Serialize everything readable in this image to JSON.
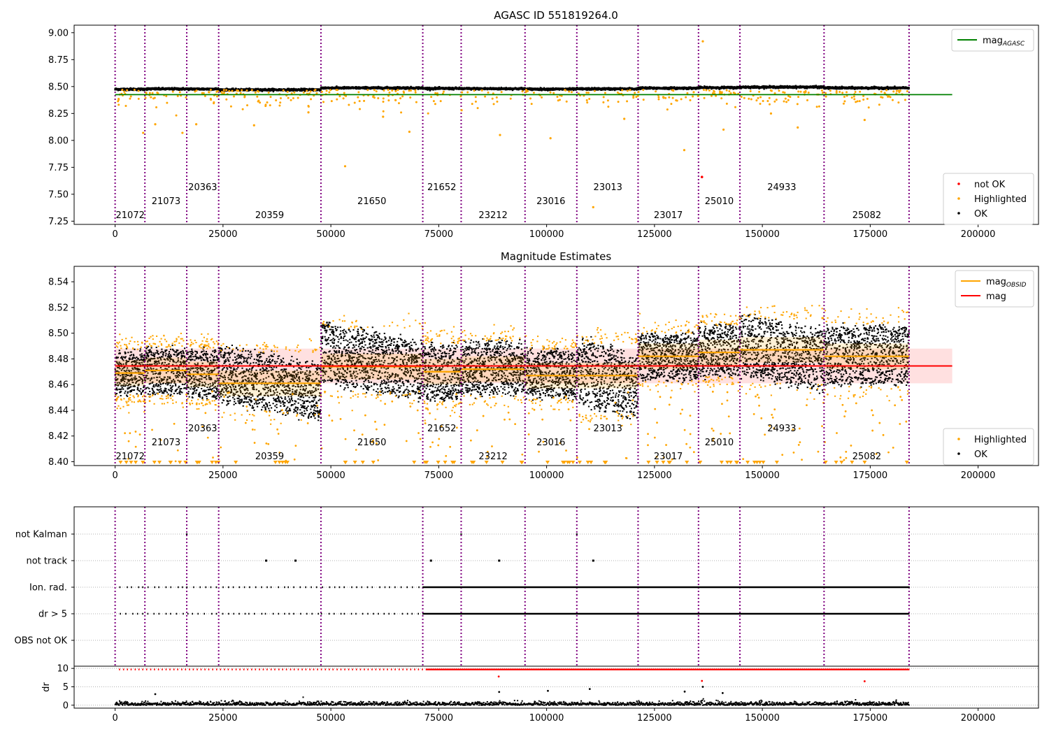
{
  "figure": {
    "obsid_boundaries": [
      0,
      6900,
      16600,
      24000,
      47700,
      71300,
      80200,
      95000,
      107000,
      121200,
      135200,
      144800,
      164300,
      184000
    ],
    "obsids": [
      {
        "label": "21072",
        "x": 3500,
        "level": 0
      },
      {
        "label": "21073",
        "x": 11800,
        "level": 1
      },
      {
        "label": "20363",
        "x": 20300,
        "level": 2
      },
      {
        "label": "20359",
        "x": 35800,
        "level": 0
      },
      {
        "label": "21650",
        "x": 59500,
        "level": 1
      },
      {
        "label": "21652",
        "x": 75700,
        "level": 2
      },
      {
        "label": "23212",
        "x": 87600,
        "level": 0
      },
      {
        "label": "23016",
        "x": 101000,
        "level": 1
      },
      {
        "label": "23013",
        "x": 114200,
        "level": 2
      },
      {
        "label": "23017",
        "x": 128200,
        "level": 0
      },
      {
        "label": "25010",
        "x": 140000,
        "level": 1
      },
      {
        "label": "24933",
        "x": 154500,
        "level": 2
      },
      {
        "label": "25082",
        "x": 174200,
        "level": 0
      }
    ]
  },
  "chart_data": [
    {
      "type": "scatter",
      "title": "AGASC ID 551819264.0",
      "xlim": [
        -9500,
        214000
      ],
      "ylim": [
        7.22,
        9.07
      ],
      "xticks": [
        0,
        25000,
        50000,
        75000,
        100000,
        125000,
        150000,
        175000,
        200000
      ],
      "yticks": [
        7.25,
        7.5,
        7.75,
        8.0,
        8.25,
        8.5,
        8.75,
        9.0
      ],
      "legend_upper": "top-right",
      "legend_lower": "bottom-right",
      "legend_upper_items": [
        {
          "name": "mag",
          "sub": "AGASC",
          "color": "#008000"
        }
      ],
      "legend_lower_items": [
        {
          "name": "not OK",
          "color": "#ff0000"
        },
        {
          "name": "Highlighted",
          "color": "#ffa500"
        },
        {
          "name": "OK",
          "color": "#000000"
        }
      ],
      "mag_agasc": 8.425,
      "mag_agasc_xrange": [
        0,
        194000
      ],
      "segment_levels": [
        8.475,
        8.478,
        8.477,
        8.47,
        8.487,
        8.482,
        8.48,
        8.476,
        8.478,
        8.485,
        8.49,
        8.495,
        8.487
      ],
      "not_ok_points": [
        {
          "x": 136000,
          "y": 7.66
        }
      ],
      "highlighted_outliers": [
        {
          "x": 6500,
          "y": 8.07
        },
        {
          "x": 15600,
          "y": 8.07
        },
        {
          "x": 18800,
          "y": 8.15
        },
        {
          "x": 9300,
          "y": 8.15
        },
        {
          "x": 32200,
          "y": 8.14
        },
        {
          "x": 53300,
          "y": 7.76
        },
        {
          "x": 68200,
          "y": 8.08
        },
        {
          "x": 89200,
          "y": 8.05
        },
        {
          "x": 100900,
          "y": 8.02
        },
        {
          "x": 110800,
          "y": 7.38
        },
        {
          "x": 131900,
          "y": 7.91
        },
        {
          "x": 136200,
          "y": 8.92
        },
        {
          "x": 141000,
          "y": 8.1
        },
        {
          "x": 158200,
          "y": 8.12
        },
        {
          "x": 173700,
          "y": 8.19
        },
        {
          "x": 44800,
          "y": 8.26
        },
        {
          "x": 62100,
          "y": 8.22
        },
        {
          "x": 118000,
          "y": 8.2
        },
        {
          "x": 152000,
          "y": 8.25
        },
        {
          "x": 80300,
          "y": 8.28
        }
      ]
    },
    {
      "type": "scatter",
      "title": "Magnitude Estimates",
      "xlim": [
        -9500,
        214000
      ],
      "ylim": [
        8.397,
        8.552
      ],
      "xticks": [
        0,
        25000,
        50000,
        75000,
        100000,
        125000,
        150000,
        175000,
        200000
      ],
      "yticks": [
        8.4,
        8.42,
        8.44,
        8.46,
        8.48,
        8.5,
        8.52,
        8.54
      ],
      "legend_upper": "top-right",
      "legend_lower": "bottom-right",
      "legend_upper_items": [
        {
          "name": "mag",
          "sub": "OBSID",
          "color": "#ffa500"
        },
        {
          "name": "mag",
          "sub": "",
          "color": "#ff0000"
        }
      ],
      "legend_lower_items": [
        {
          "name": "Highlighted",
          "color": "#ffa500"
        },
        {
          "name": "OK",
          "color": "#000000"
        }
      ],
      "mag": 8.4745,
      "mag_band": [
        8.461,
        8.488
      ],
      "mag_xrange": [
        0,
        194000
      ],
      "segments": [
        {
          "mean": 8.469,
          "top": 8.487,
          "bottom": 8.452
        },
        {
          "mean": 8.471,
          "top": 8.489,
          "bottom": 8.452
        },
        {
          "mean": 8.468,
          "top": 8.488,
          "bottom": 8.449
        },
        {
          "mean": 8.461,
          "top": 8.485,
          "bottom": 8.44
        },
        {
          "mean": 8.474,
          "top": 8.503,
          "bottom": 8.455
        },
        {
          "mean": 8.47,
          "top": 8.492,
          "bottom": 8.447
        },
        {
          "mean": 8.472,
          "top": 8.494,
          "bottom": 8.452
        },
        {
          "mean": 8.467,
          "top": 8.487,
          "bottom": 8.449
        },
        {
          "mean": 8.467,
          "top": 8.492,
          "bottom": 8.438
        },
        {
          "mean": 8.482,
          "top": 8.5,
          "bottom": 8.463
        },
        {
          "mean": 8.485,
          "top": 8.506,
          "bottom": 8.466
        },
        {
          "mean": 8.487,
          "top": 8.511,
          "bottom": 8.461
        },
        {
          "mean": 8.482,
          "top": 8.507,
          "bottom": 8.459
        }
      ]
    },
    {
      "type": "scatter",
      "title": "",
      "xlim": [
        -9500,
        214000
      ],
      "categories": [
        "not Kalman",
        "not track",
        "Ion. rad.",
        "dr > 5",
        "OBS not OK"
      ],
      "not_kalman_x": [
        16600,
        80200,
        107000
      ],
      "not_track_x": [
        35000,
        41800,
        73200,
        89000,
        110800
      ],
      "ion_rad_ranges": [
        [
          1000,
          71300,
          "sparse"
        ],
        [
          71300,
          184000,
          "dense"
        ]
      ],
      "dr_ylabel": "dr",
      "dr_yticks": [
        0,
        5,
        10
      ],
      "dr_ylim": [
        -0.8,
        10.6
      ],
      "xticks": [
        0,
        25000,
        50000,
        75000,
        100000,
        125000,
        150000,
        175000,
        200000
      ],
      "dr_outliers": [
        {
          "x": 9300,
          "y": 3.0
        },
        {
          "x": 88900,
          "y": 7.8
        },
        {
          "x": 89000,
          "y": 3.6
        },
        {
          "x": 100300,
          "y": 3.9
        },
        {
          "x": 110000,
          "y": 4.4
        },
        {
          "x": 132000,
          "y": 3.7
        },
        {
          "x": 136000,
          "y": 6.6
        },
        {
          "x": 136200,
          "y": 5.0
        },
        {
          "x": 140800,
          "y": 3.3
        },
        {
          "x": 173700,
          "y": 6.5
        }
      ]
    }
  ]
}
